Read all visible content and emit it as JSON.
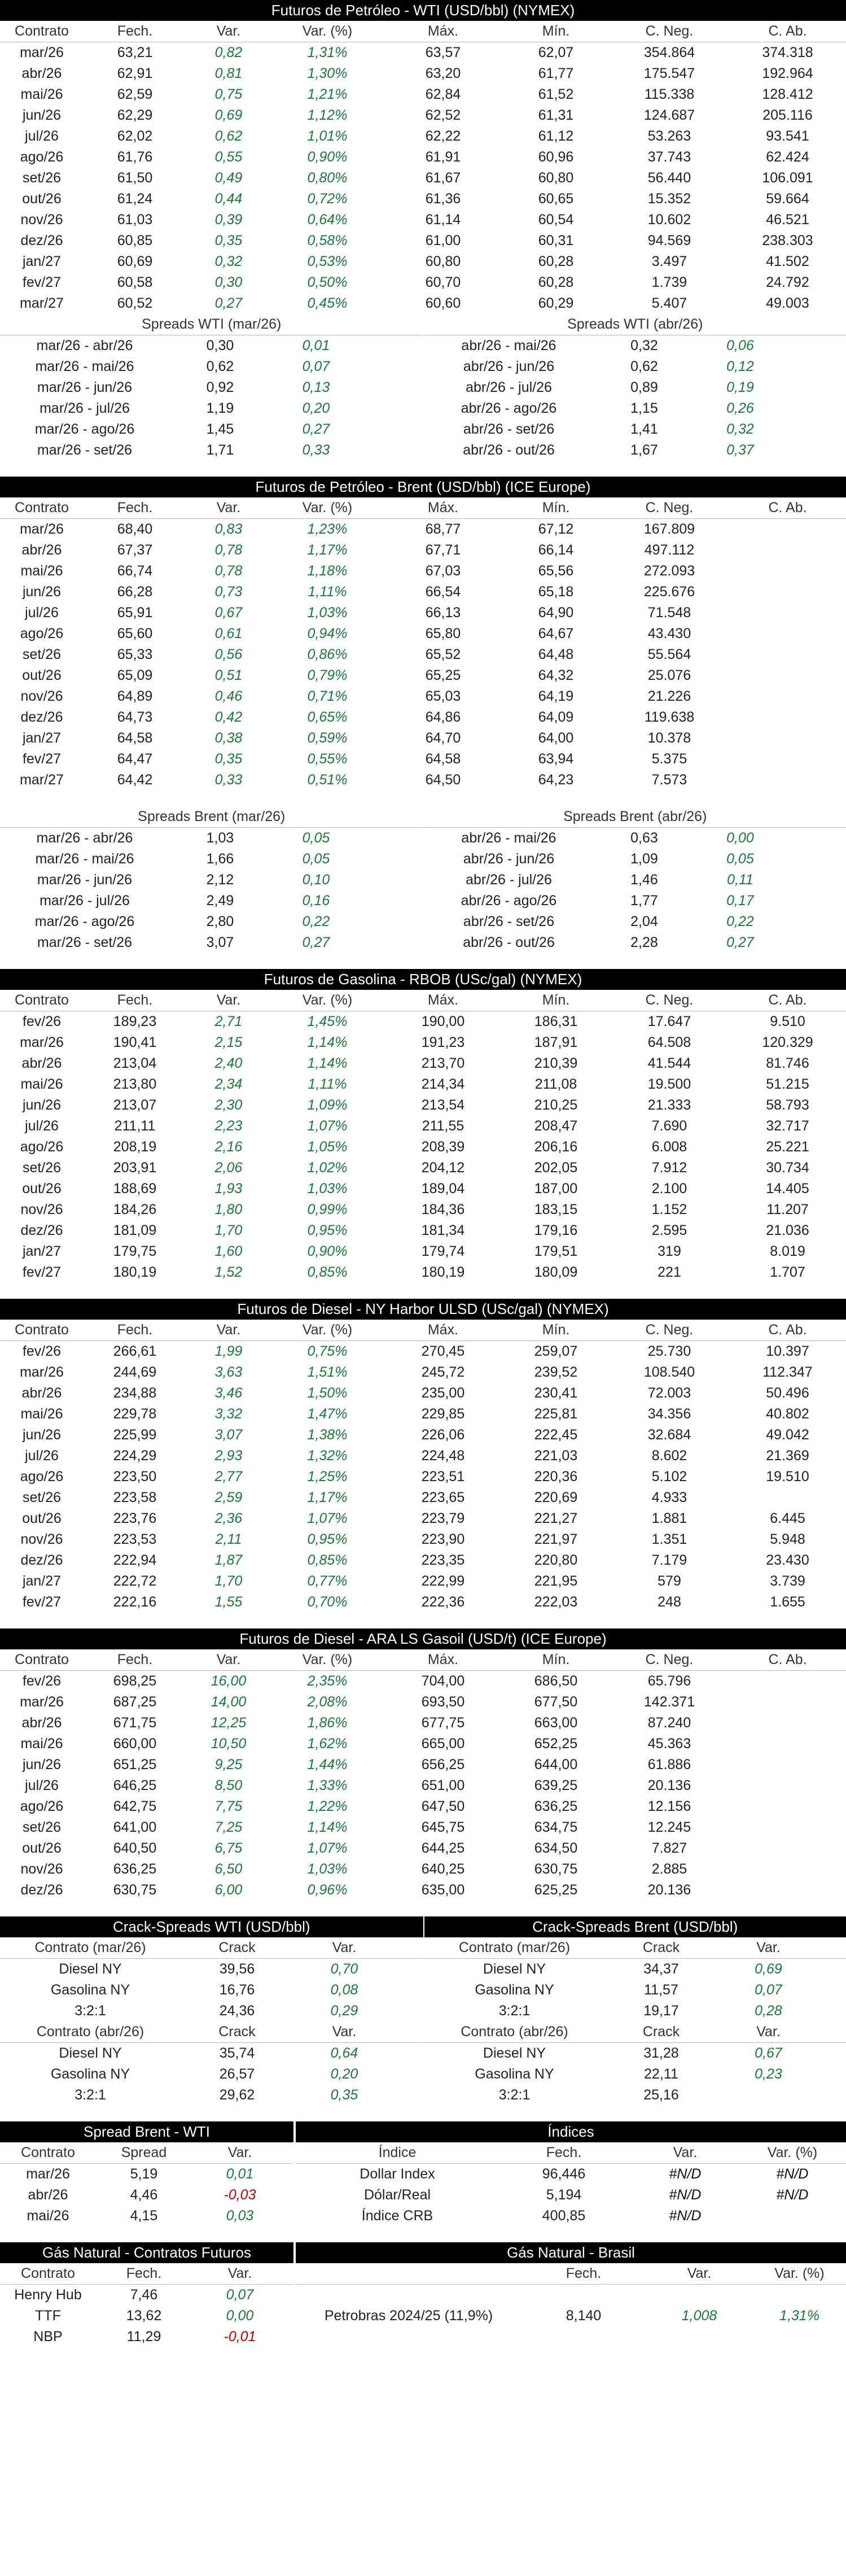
{
  "colors": {
    "positive": "#1a7a3a",
    "negative": "#c00000",
    "header_bg": "#000000"
  },
  "wti": {
    "title": "Futuros de Petróleo - WTI (USD/bbl) (NYMEX)",
    "cols": [
      "Contrato",
      "Fech.",
      "Var.",
      "Var. (%)",
      "Máx.",
      "Mín.",
      "C. Neg.",
      "C. Ab."
    ],
    "rows": [
      [
        "mar/26",
        "63,21",
        "0,82",
        "1,31%",
        "63,57",
        "62,07",
        "354.864",
        "374.318"
      ],
      [
        "abr/26",
        "62,91",
        "0,81",
        "1,30%",
        "63,20",
        "61,77",
        "175.547",
        "192.964"
      ],
      [
        "mai/26",
        "62,59",
        "0,75",
        "1,21%",
        "62,84",
        "61,52",
        "115.338",
        "128.412"
      ],
      [
        "jun/26",
        "62,29",
        "0,69",
        "1,12%",
        "62,52",
        "61,31",
        "124.687",
        "205.116"
      ],
      [
        "jul/26",
        "62,02",
        "0,62",
        "1,01%",
        "62,22",
        "61,12",
        "53.263",
        "93.541"
      ],
      [
        "ago/26",
        "61,76",
        "0,55",
        "0,90%",
        "61,91",
        "60,96",
        "37.743",
        "62.424"
      ],
      [
        "set/26",
        "61,50",
        "0,49",
        "0,80%",
        "61,67",
        "60,80",
        "56.440",
        "106.091"
      ],
      [
        "out/26",
        "61,24",
        "0,44",
        "0,72%",
        "61,36",
        "60,65",
        "15.352",
        "59.664"
      ],
      [
        "nov/26",
        "61,03",
        "0,39",
        "0,64%",
        "61,14",
        "60,54",
        "10.602",
        "46.521"
      ],
      [
        "dez/26",
        "60,85",
        "0,35",
        "0,58%",
        "61,00",
        "60,31",
        "94.569",
        "238.303"
      ],
      [
        "jan/27",
        "60,69",
        "0,32",
        "0,53%",
        "60,80",
        "60,28",
        "3.497",
        "41.502"
      ],
      [
        "fev/27",
        "60,58",
        "0,30",
        "0,50%",
        "60,70",
        "60,28",
        "1.739",
        "24.792"
      ],
      [
        "mar/27",
        "60,52",
        "0,27",
        "0,45%",
        "60,60",
        "60,29",
        "5.407",
        "49.003"
      ]
    ],
    "spreads_left_title": "Spreads WTI (mar/26)",
    "spreads_right_title": "Spreads WTI (abr/26)",
    "spreads_left": [
      [
        "mar/26 - abr/26",
        "0,30",
        "0,01"
      ],
      [
        "mar/26 - mai/26",
        "0,62",
        "0,07"
      ],
      [
        "mar/26 - jun/26",
        "0,92",
        "0,13"
      ],
      [
        "mar/26 - jul/26",
        "1,19",
        "0,20"
      ],
      [
        "mar/26 - ago/26",
        "1,45",
        "0,27"
      ],
      [
        "mar/26 - set/26",
        "1,71",
        "0,33"
      ]
    ],
    "spreads_right": [
      [
        "abr/26 - mai/26",
        "0,32",
        "0,06"
      ],
      [
        "abr/26 - jun/26",
        "0,62",
        "0,12"
      ],
      [
        "abr/26 - jul/26",
        "0,89",
        "0,19"
      ],
      [
        "abr/26 - ago/26",
        "1,15",
        "0,26"
      ],
      [
        "abr/26 - set/26",
        "1,41",
        "0,32"
      ],
      [
        "abr/26 - out/26",
        "1,67",
        "0,37"
      ]
    ]
  },
  "brent": {
    "title": "Futuros de Petróleo - Brent (USD/bbl) (ICE Europe)",
    "cols": [
      "Contrato",
      "Fech.",
      "Var.",
      "Var. (%)",
      "Máx.",
      "Mín.",
      "C. Neg.",
      "C. Ab."
    ],
    "rows": [
      [
        "mar/26",
        "68,40",
        "0,83",
        "1,23%",
        "68,77",
        "67,12",
        "167.809",
        ""
      ],
      [
        "abr/26",
        "67,37",
        "0,78",
        "1,17%",
        "67,71",
        "66,14",
        "497.112",
        ""
      ],
      [
        "mai/26",
        "66,74",
        "0,78",
        "1,18%",
        "67,03",
        "65,56",
        "272.093",
        ""
      ],
      [
        "jun/26",
        "66,28",
        "0,73",
        "1,11%",
        "66,54",
        "65,18",
        "225.676",
        ""
      ],
      [
        "jul/26",
        "65,91",
        "0,67",
        "1,03%",
        "66,13",
        "64,90",
        "71.548",
        ""
      ],
      [
        "ago/26",
        "65,60",
        "0,61",
        "0,94%",
        "65,80",
        "64,67",
        "43.430",
        ""
      ],
      [
        "set/26",
        "65,33",
        "0,56",
        "0,86%",
        "65,52",
        "64,48",
        "55.564",
        ""
      ],
      [
        "out/26",
        "65,09",
        "0,51",
        "0,79%",
        "65,25",
        "64,32",
        "25.076",
        ""
      ],
      [
        "nov/26",
        "64,89",
        "0,46",
        "0,71%",
        "65,03",
        "64,19",
        "21.226",
        ""
      ],
      [
        "dez/26",
        "64,73",
        "0,42",
        "0,65%",
        "64,86",
        "64,09",
        "119.638",
        ""
      ],
      [
        "jan/27",
        "64,58",
        "0,38",
        "0,59%",
        "64,70",
        "64,00",
        "10.378",
        ""
      ],
      [
        "fev/27",
        "64,47",
        "0,35",
        "0,55%",
        "64,58",
        "63,94",
        "5.375",
        ""
      ],
      [
        "mar/27",
        "64,42",
        "0,33",
        "0,51%",
        "64,50",
        "64,23",
        "7.573",
        ""
      ]
    ],
    "spreads_left_title": "Spreads Brent (mar/26)",
    "spreads_right_title": "Spreads Brent (abr/26)",
    "spreads_left": [
      [
        "mar/26 - abr/26",
        "1,03",
        "0,05"
      ],
      [
        "mar/26 - mai/26",
        "1,66",
        "0,05"
      ],
      [
        "mar/26 - jun/26",
        "2,12",
        "0,10"
      ],
      [
        "mar/26 - jul/26",
        "2,49",
        "0,16"
      ],
      [
        "mar/26 - ago/26",
        "2,80",
        "0,22"
      ],
      [
        "mar/26 - set/26",
        "3,07",
        "0,27"
      ]
    ],
    "spreads_right": [
      [
        "abr/26 - mai/26",
        "0,63",
        "0,00"
      ],
      [
        "abr/26 - jun/26",
        "1,09",
        "0,05"
      ],
      [
        "abr/26 - jul/26",
        "1,46",
        "0,11"
      ],
      [
        "abr/26 - ago/26",
        "1,77",
        "0,17"
      ],
      [
        "abr/26 - set/26",
        "2,04",
        "0,22"
      ],
      [
        "abr/26 - out/26",
        "2,28",
        "0,27"
      ]
    ]
  },
  "rbob": {
    "title": "Futuros de Gasolina - RBOB (USc/gal) (NYMEX)",
    "cols": [
      "Contrato",
      "Fech.",
      "Var.",
      "Var. (%)",
      "Máx.",
      "Mín.",
      "C. Neg.",
      "C. Ab."
    ],
    "rows": [
      [
        "fev/26",
        "189,23",
        "2,71",
        "1,45%",
        "190,00",
        "186,31",
        "17.647",
        "9.510"
      ],
      [
        "mar/26",
        "190,41",
        "2,15",
        "1,14%",
        "191,23",
        "187,91",
        "64.508",
        "120.329"
      ],
      [
        "abr/26",
        "213,04",
        "2,40",
        "1,14%",
        "213,70",
        "210,39",
        "41.544",
        "81.746"
      ],
      [
        "mai/26",
        "213,80",
        "2,34",
        "1,11%",
        "214,34",
        "211,08",
        "19.500",
        "51.215"
      ],
      [
        "jun/26",
        "213,07",
        "2,30",
        "1,09%",
        "213,54",
        "210,25",
        "21.333",
        "58.793"
      ],
      [
        "jul/26",
        "211,11",
        "2,23",
        "1,07%",
        "211,55",
        "208,47",
        "7.690",
        "32.717"
      ],
      [
        "ago/26",
        "208,19",
        "2,16",
        "1,05%",
        "208,39",
        "206,16",
        "6.008",
        "25.221"
      ],
      [
        "set/26",
        "203,91",
        "2,06",
        "1,02%",
        "204,12",
        "202,05",
        "7.912",
        "30.734"
      ],
      [
        "out/26",
        "188,69",
        "1,93",
        "1,03%",
        "189,04",
        "187,00",
        "2.100",
        "14.405"
      ],
      [
        "nov/26",
        "184,26",
        "1,80",
        "0,99%",
        "184,36",
        "183,15",
        "1.152",
        "11.207"
      ],
      [
        "dez/26",
        "181,09",
        "1,70",
        "0,95%",
        "181,34",
        "179,16",
        "2.595",
        "21.036"
      ],
      [
        "jan/27",
        "179,75",
        "1,60",
        "0,90%",
        "179,74",
        "179,51",
        "319",
        "8.019"
      ],
      [
        "fev/27",
        "180,19",
        "1,52",
        "0,85%",
        "180,19",
        "180,09",
        "221",
        "1.707"
      ]
    ]
  },
  "ulsd": {
    "title": "Futuros de Diesel - NY Harbor ULSD (USc/gal) (NYMEX)",
    "cols": [
      "Contrato",
      "Fech.",
      "Var.",
      "Var. (%)",
      "Máx.",
      "Mín.",
      "C. Neg.",
      "C. Ab."
    ],
    "rows": [
      [
        "fev/26",
        "266,61",
        "1,99",
        "0,75%",
        "270,45",
        "259,07",
        "25.730",
        "10.397"
      ],
      [
        "mar/26",
        "244,69",
        "3,63",
        "1,51%",
        "245,72",
        "239,52",
        "108.540",
        "112.347"
      ],
      [
        "abr/26",
        "234,88",
        "3,46",
        "1,50%",
        "235,00",
        "230,41",
        "72.003",
        "50.496"
      ],
      [
        "mai/26",
        "229,78",
        "3,32",
        "1,47%",
        "229,85",
        "225,81",
        "34.356",
        "40.802"
      ],
      [
        "jun/26",
        "225,99",
        "3,07",
        "1,38%",
        "226,06",
        "222,45",
        "32.684",
        "49.042"
      ],
      [
        "jul/26",
        "224,29",
        "2,93",
        "1,32%",
        "224,48",
        "221,03",
        "8.602",
        "21.369"
      ],
      [
        "ago/26",
        "223,50",
        "2,77",
        "1,25%",
        "223,51",
        "220,36",
        "5.102",
        "19.510"
      ],
      [
        "set/26",
        "223,58",
        "2,59",
        "1,17%",
        "223,65",
        "220,69",
        "4.933",
        ""
      ],
      [
        "out/26",
        "223,76",
        "2,36",
        "1,07%",
        "223,79",
        "221,27",
        "1.881",
        "6.445"
      ],
      [
        "nov/26",
        "223,53",
        "2,11",
        "0,95%",
        "223,90",
        "221,97",
        "1.351",
        "5.948"
      ],
      [
        "dez/26",
        "222,94",
        "1,87",
        "0,85%",
        "223,35",
        "220,80",
        "7.179",
        "23.430"
      ],
      [
        "jan/27",
        "222,72",
        "1,70",
        "0,77%",
        "222,99",
        "221,95",
        "579",
        "3.739"
      ],
      [
        "fev/27",
        "222,16",
        "1,55",
        "0,70%",
        "222,36",
        "222,03",
        "248",
        "1.655"
      ]
    ]
  },
  "gasoil": {
    "title": "Futuros de Diesel - ARA LS Gasoil (USD/t) (ICE Europe)",
    "cols": [
      "Contrato",
      "Fech.",
      "Var.",
      "Var. (%)",
      "Máx.",
      "Mín.",
      "C. Neg.",
      "C. Ab."
    ],
    "rows": [
      [
        "fev/26",
        "698,25",
        "16,00",
        "2,35%",
        "704,00",
        "686,50",
        "65.796",
        ""
      ],
      [
        "mar/26",
        "687,25",
        "14,00",
        "2,08%",
        "693,50",
        "677,50",
        "142.371",
        ""
      ],
      [
        "abr/26",
        "671,75",
        "12,25",
        "1,86%",
        "677,75",
        "663,00",
        "87.240",
        ""
      ],
      [
        "mai/26",
        "660,00",
        "10,50",
        "1,62%",
        "665,00",
        "652,25",
        "45.363",
        ""
      ],
      [
        "jun/26",
        "651,25",
        "9,25",
        "1,44%",
        "656,25",
        "644,00",
        "61.886",
        ""
      ],
      [
        "jul/26",
        "646,25",
        "8,50",
        "1,33%",
        "651,00",
        "639,25",
        "20.136",
        ""
      ],
      [
        "ago/26",
        "642,75",
        "7,75",
        "1,22%",
        "647,50",
        "636,25",
        "12.156",
        ""
      ],
      [
        "set/26",
        "641,00",
        "7,25",
        "1,14%",
        "645,75",
        "634,75",
        "12.245",
        ""
      ],
      [
        "out/26",
        "640,50",
        "6,75",
        "1,07%",
        "644,25",
        "634,50",
        "7.827",
        ""
      ],
      [
        "nov/26",
        "636,25",
        "6,50",
        "1,03%",
        "640,25",
        "630,75",
        "2.885",
        ""
      ],
      [
        "dez/26",
        "630,75",
        "6,00",
        "0,96%",
        "635,00",
        "625,25",
        "20.136",
        ""
      ]
    ]
  },
  "crack": {
    "wti_title": "Crack-Spreads WTI (USD/bbl)",
    "brent_title": "Crack-Spreads Brent (USD/bbl)",
    "crack_label": "Crack",
    "var_label": "Var.",
    "wti_groups": [
      {
        "label": "Contrato (mar/26)",
        "rows": [
          [
            "Diesel NY",
            "39,56",
            "0,70"
          ],
          [
            "Gasolina NY",
            "16,76",
            "0,08"
          ],
          [
            "3:2:1",
            "24,36",
            "0,29"
          ]
        ]
      },
      {
        "label": "Contrato (abr/26)",
        "rows": [
          [
            "Diesel NY",
            "35,74",
            "0,64"
          ],
          [
            "Gasolina NY",
            "26,57",
            "0,20"
          ],
          [
            "3:2:1",
            "29,62",
            "0,35"
          ]
        ]
      }
    ],
    "brent_groups": [
      {
        "label": "Contrato (mar/26)",
        "rows": [
          [
            "Diesel NY",
            "34,37",
            "0,69"
          ],
          [
            "Gasolina NY",
            "11,57",
            "0,07"
          ],
          [
            "3:2:1",
            "19,17",
            "0,28"
          ]
        ]
      },
      {
        "label": "Contrato (abr/26)",
        "rows": [
          [
            "Diesel NY",
            "31,28",
            "0,67"
          ],
          [
            "Gasolina NY",
            "22,11",
            "0,23"
          ],
          [
            "3:2:1",
            "25,16",
            ""
          ]
        ]
      }
    ]
  },
  "spread_bw": {
    "title": "Spread Brent - WTI",
    "cols": [
      "Contrato",
      "Spread",
      "Var."
    ],
    "rows": [
      [
        "mar/26",
        "5,19",
        "0,01"
      ],
      [
        "abr/26",
        "4,46",
        "-0,03"
      ],
      [
        "mai/26",
        "4,15",
        "0,03"
      ]
    ]
  },
  "indices": {
    "title": "Índices",
    "cols": [
      "Índice",
      "Fech.",
      "Var.",
      "Var. (%)"
    ],
    "rows": [
      [
        "Dollar Index",
        "96,446",
        "#N/D",
        "#N/D"
      ],
      [
        "Dólar/Real",
        "5,194",
        "#N/D",
        "#N/D"
      ],
      [
        "Índice CRB",
        "400,85",
        "#N/D",
        ""
      ]
    ]
  },
  "gas_futures": {
    "title": "Gás Natural - Contratos Futuros",
    "cols": [
      "Contrato",
      "Fech.",
      "Var."
    ],
    "rows": [
      [
        "Henry Hub",
        "7,46",
        "0,07"
      ],
      [
        "TTF",
        "13,62",
        "0,00"
      ],
      [
        "NBP",
        "11,29",
        "-0,01"
      ]
    ]
  },
  "gas_brasil": {
    "title": "Gás Natural - Brasil",
    "cols": [
      "",
      "Fech.",
      "Var.",
      "Var. (%)"
    ],
    "rows": [
      [
        "Petrobras 2024/25 (11,9%)",
        "8,140",
        "1,008",
        "1,31%"
      ]
    ]
  }
}
